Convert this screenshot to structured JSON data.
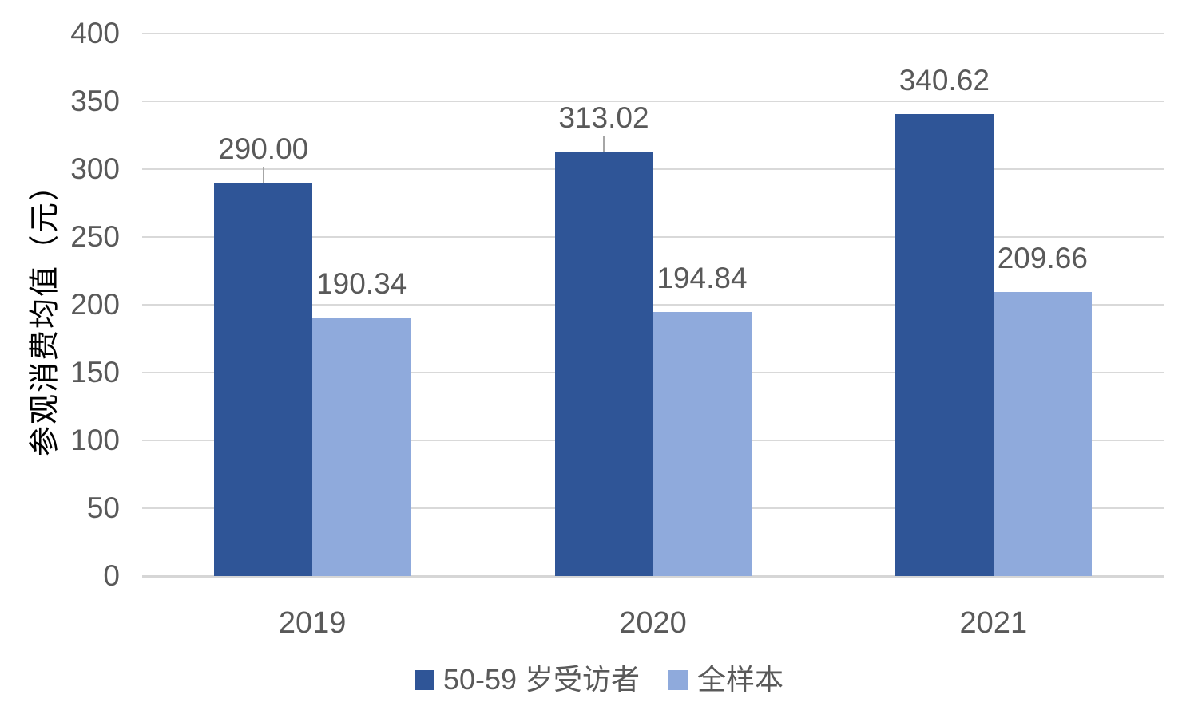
{
  "chart_data": {
    "type": "bar",
    "title": "",
    "categories": [
      "2019",
      "2020",
      "2021"
    ],
    "series": [
      {
        "name": "50-59 岁受访者",
        "color": "#2F5597",
        "values": [
          290.0,
          313.02,
          340.62
        ],
        "value_labels": [
          "290.00",
          "313.02",
          "340.62"
        ],
        "label_leader_lines": [
          true,
          true,
          false
        ]
      },
      {
        "name": "全样本",
        "color": "#8FAADC",
        "values": [
          190.34,
          194.84,
          209.66
        ],
        "value_labels": [
          "190.34",
          "194.84",
          "209.66"
        ],
        "label_leader_lines": [
          false,
          false,
          false
        ]
      }
    ],
    "xlabel": "",
    "ylabel": "参观消费均值（元）",
    "ylim": [
      0,
      400
    ],
    "ytick_step": 50,
    "yticks": [
      "0",
      "50",
      "100",
      "150",
      "200",
      "250",
      "300",
      "350",
      "400"
    ],
    "grid": true,
    "legend_position": "bottom"
  },
  "colors": {
    "series1": "#2F5597",
    "series2": "#8FAADC",
    "text": "#595959",
    "gridline": "#D9D9D9",
    "axis_line": "#D6D6D6",
    "leader_line": "#A6A6A6",
    "background": "#FFFFFF"
  }
}
